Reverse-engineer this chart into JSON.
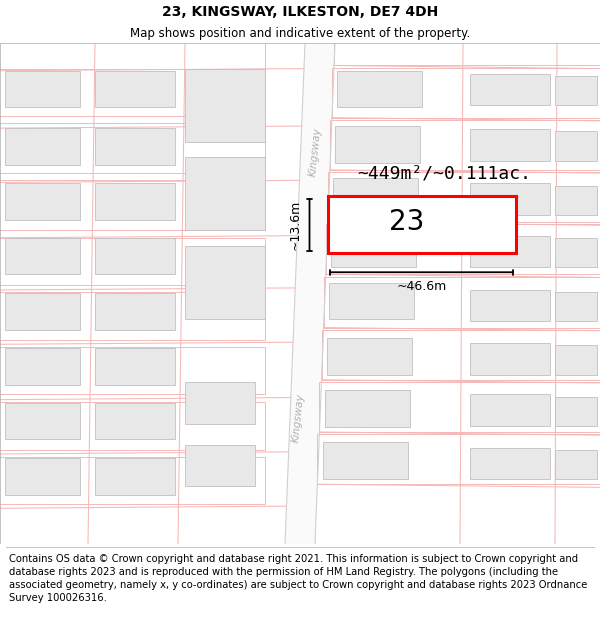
{
  "title": "23, KINGSWAY, ILKESTON, DE7 4DH",
  "subtitle": "Map shows position and indicative extent of the property.",
  "footer": "Contains OS data © Crown copyright and database right 2021. This information is subject to Crown copyright and database rights 2023 and is reproduced with the permission of HM Land Registry. The polygons (including the associated geometry, namely x, y co-ordinates) are subject to Crown copyright and database rights 2023 Ordnance Survey 100026316.",
  "map_bg": "#ffffff",
  "road_fill": "#ffffff",
  "road_edge": "#c8c8c8",
  "building_fill": "#e8e8e8",
  "building_edge": "#c0c0c0",
  "plot_line_color": "#f5b8b8",
  "highlight_color": "#ff0000",
  "dimension_color": "#000000",
  "label_number": "23",
  "area_label": "~449m²/~0.111ac.",
  "width_label": "~46.6m",
  "height_label": "~13.6m",
  "title_fontsize": 10,
  "subtitle_fontsize": 8.5,
  "footer_fontsize": 7.2,
  "road_label": "Kingsway",
  "road_label_color": "#b0b0b0"
}
